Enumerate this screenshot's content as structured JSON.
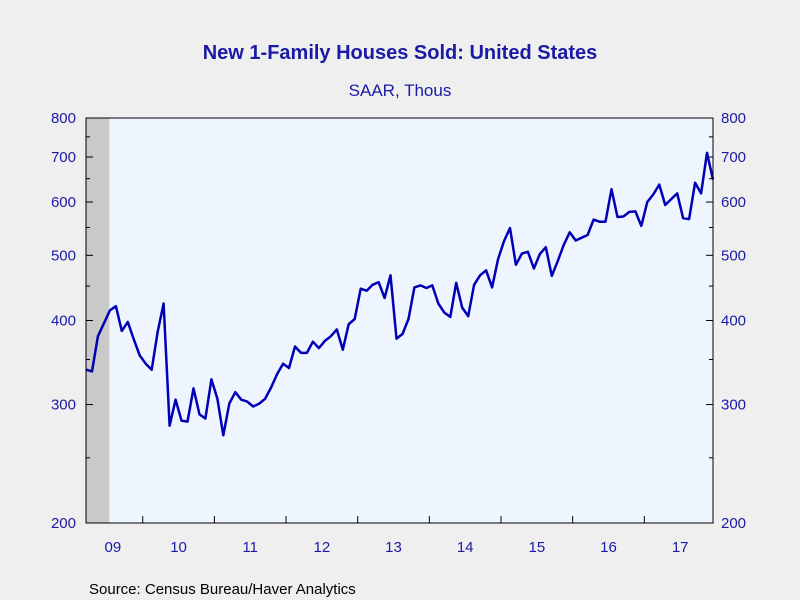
{
  "chart_data": {
    "type": "line",
    "title": "New 1-Family Houses Sold: United States",
    "subtitle": "SAAR, Thous",
    "source": "Source:  Census Bureau/Haver Analytics",
    "y_scale": "log",
    "ylim": [
      200,
      800
    ],
    "y_ticks": [
      "200",
      "300",
      "400",
      "500",
      "600",
      "700",
      "800"
    ],
    "x_tick_labels": [
      "09",
      "10",
      "11",
      "12",
      "13",
      "14",
      "15",
      "16",
      "17"
    ],
    "x_range": [
      "2009-03",
      "2017-12"
    ],
    "recession_shading": [
      "2009-03",
      "2009-06"
    ],
    "grid": false,
    "legend": "none",
    "line_color": "#0000b4",
    "series": [
      {
        "x": [
          "2009-03",
          "2009-04",
          "2009-05",
          "2009-06",
          "2009-07",
          "2009-08",
          "2009-09",
          "2009-10",
          "2009-11",
          "2009-12",
          "2010-01",
          "2010-02",
          "2010-03",
          "2010-04",
          "2010-05",
          "2010-06",
          "2010-07",
          "2010-08",
          "2010-09",
          "2010-10",
          "2010-11",
          "2010-12",
          "2011-01",
          "2011-02",
          "2011-03",
          "2011-04",
          "2011-05",
          "2011-06",
          "2011-07",
          "2011-08",
          "2011-09",
          "2011-10",
          "2011-11",
          "2011-12",
          "2012-01",
          "2012-02",
          "2012-03",
          "2012-04",
          "2012-05",
          "2012-06",
          "2012-07",
          "2012-08",
          "2012-09",
          "2012-10",
          "2012-11",
          "2012-12",
          "2013-01",
          "2013-02",
          "2013-03",
          "2013-04",
          "2013-05",
          "2013-06",
          "2013-07",
          "2013-08",
          "2013-09",
          "2013-10",
          "2013-11",
          "2013-12",
          "2014-01",
          "2014-02",
          "2014-03",
          "2014-04",
          "2014-05",
          "2014-06",
          "2014-07",
          "2014-08",
          "2014-09",
          "2014-10",
          "2014-11",
          "2014-12",
          "2015-01",
          "2015-02",
          "2015-03",
          "2015-04",
          "2015-05",
          "2015-06",
          "2015-07",
          "2015-08",
          "2015-09",
          "2015-10",
          "2015-11",
          "2015-12",
          "2016-01",
          "2016-02",
          "2016-03",
          "2016-04",
          "2016-05",
          "2016-06",
          "2016-07",
          "2016-08",
          "2016-09",
          "2016-10",
          "2016-11",
          "2016-12",
          "2017-01",
          "2017-02",
          "2017-03",
          "2017-04",
          "2017-05",
          "2017-06",
          "2017-07",
          "2017-08",
          "2017-09",
          "2017-10",
          "2017-11",
          "2017-12"
        ],
        "values": [
          338,
          336,
          379,
          396,
          414,
          420,
          386,
          398,
          375,
          355,
          345,
          338,
          385,
          424,
          279,
          305,
          284,
          283,
          317,
          290,
          286,
          327,
          306,
          270,
          301,
          313,
          305,
          303,
          298,
          301,
          306,
          318,
          333,
          345,
          340,
          366,
          358,
          358,
          372,
          364,
          373,
          379,
          388,
          362,
          395,
          402,
          446,
          443,
          452,
          456,
          432,
          467,
          376,
          382,
          402,
          448,
          451,
          447,
          451,
          424,
          411,
          405,
          455,
          418,
          406,
          452,
          467,
          475,
          448,
          493,
          525,
          549,
          484,
          503,
          506,
          478,
          502,
          514,
          466,
          490,
          518,
          541,
          526,
          531,
          536,
          565,
          561,
          561,
          627,
          570,
          571,
          580,
          581,
          553,
          600,
          616,
          637,
          594,
          606,
          618,
          568,
          566,
          641,
          618,
          710,
          648
        ]
      }
    ]
  }
}
